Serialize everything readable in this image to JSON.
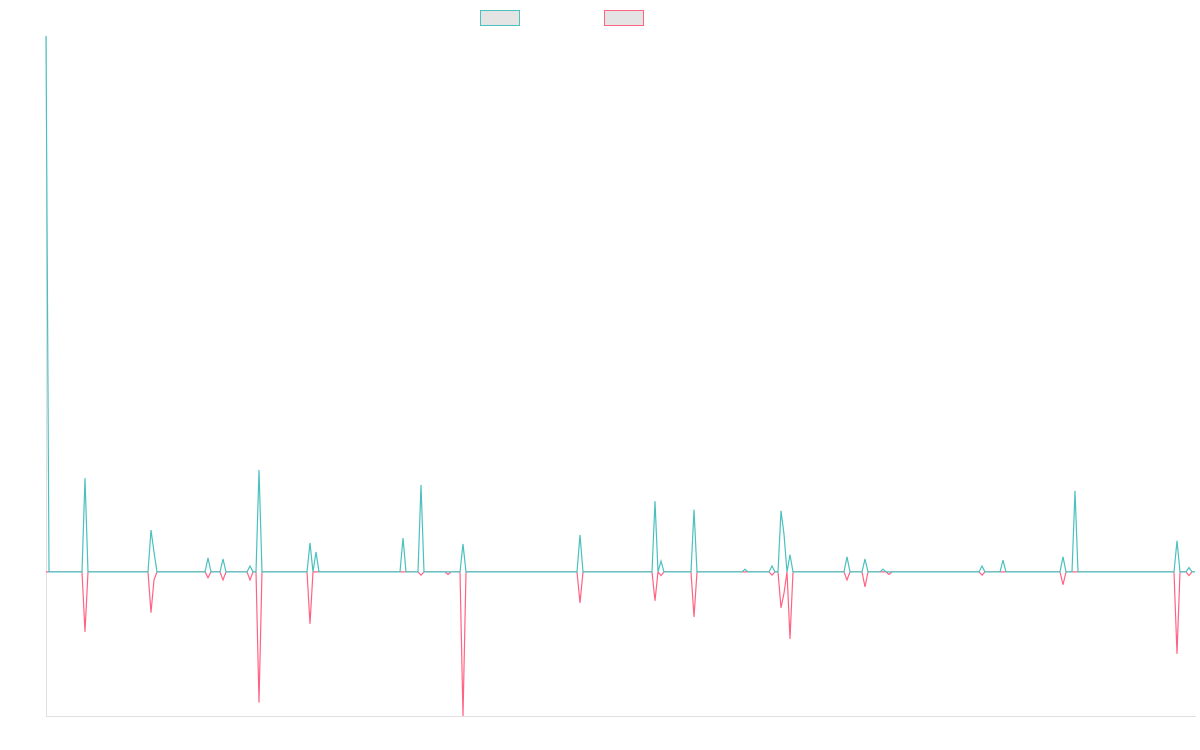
{
  "chart_data": {
    "type": "line",
    "title": "",
    "xlabel": "",
    "ylabel": "",
    "xlim": [
      0,
      383
    ],
    "ylim": [
      -26.9,
      100
    ],
    "grid": false,
    "legend_position": "top-center",
    "baseline_value": 0,
    "series": [
      {
        "name": "",
        "color": "#4bc0c0",
        "points": [
          [
            0,
            100
          ],
          [
            13,
            17.5
          ],
          [
            35,
            7.8
          ],
          [
            36,
            3.7
          ],
          [
            54,
            2.6
          ],
          [
            59,
            2.4
          ],
          [
            68,
            1.1
          ],
          [
            71,
            19
          ],
          [
            88,
            5.4
          ],
          [
            90,
            3.7
          ],
          [
            119,
            6.3
          ],
          [
            125,
            16.2
          ],
          [
            139,
            5.2
          ],
          [
            178,
            6.9
          ],
          [
            203,
            13.2
          ],
          [
            205,
            2
          ],
          [
            216,
            11.6
          ],
          [
            233,
            0.5
          ],
          [
            242,
            1.1
          ],
          [
            245,
            11.4
          ],
          [
            246,
            7
          ],
          [
            248,
            3.2
          ],
          [
            267,
            2.8
          ],
          [
            273,
            2.4
          ],
          [
            279,
            0.5
          ],
          [
            312,
            1.1
          ],
          [
            319,
            2.2
          ],
          [
            339,
            2.8
          ],
          [
            343,
            15.1
          ],
          [
            377,
            5.8
          ],
          [
            381,
            0.8
          ]
        ]
      },
      {
        "name": "",
        "color": "#ff6384",
        "points": [
          [
            13,
            -11.2
          ],
          [
            35,
            -7.6
          ],
          [
            36,
            -1.5
          ],
          [
            54,
            -1.1
          ],
          [
            59,
            -1.5
          ],
          [
            68,
            -1.5
          ],
          [
            71,
            -24.4
          ],
          [
            88,
            -9.7
          ],
          [
            125,
            -0.6
          ],
          [
            134,
            -0.5
          ],
          [
            139,
            -26.9
          ],
          [
            178,
            -5.8
          ],
          [
            203,
            -5.4
          ],
          [
            205,
            -0.7
          ],
          [
            216,
            -8.4
          ],
          [
            242,
            -0.6
          ],
          [
            245,
            -6.7
          ],
          [
            246,
            -4
          ],
          [
            248,
            -12.5
          ],
          [
            267,
            -1.5
          ],
          [
            273,
            -2.8
          ],
          [
            281,
            -0.5
          ],
          [
            312,
            -0.6
          ],
          [
            339,
            -2.4
          ],
          [
            377,
            -15.3
          ],
          [
            381,
            -0.7
          ]
        ]
      }
    ]
  }
}
